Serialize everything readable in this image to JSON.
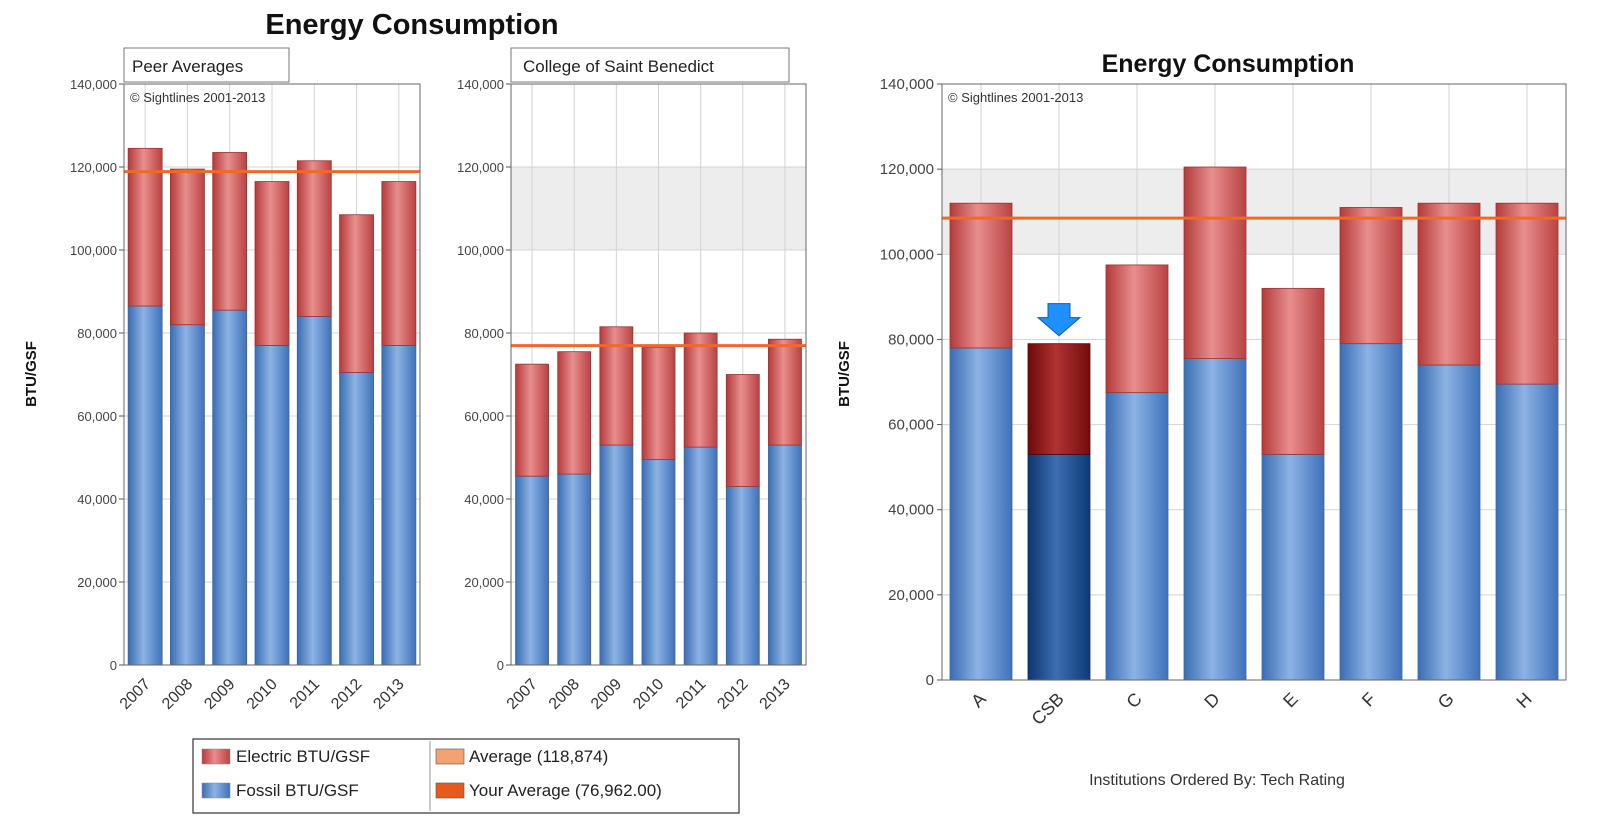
{
  "chart_data": [
    {
      "type": "bar",
      "stacked": true,
      "title": "Energy Consumption",
      "panel_label": "Peer Averages",
      "copyright": "© Sightlines 2001-2013",
      "ylabel": "BTU/GSF",
      "ylim": [
        0,
        140000
      ],
      "yticks": [
        "0",
        "20,000",
        "40,000",
        "60,000",
        "80,000",
        "100,000",
        "120,000",
        "140,000"
      ],
      "categories": [
        "2007",
        "2008",
        "2009",
        "2010",
        "2011",
        "2012",
        "2013"
      ],
      "series": [
        {
          "name": "Fossil BTU/GSF",
          "values": [
            86500,
            82000,
            85500,
            77000,
            84000,
            70500,
            77000
          ]
        },
        {
          "name": "Electric BTU/GSF",
          "values": [
            38000,
            37500,
            38000,
            39500,
            37500,
            38000,
            39500
          ]
        }
      ],
      "reference_line": 118874
    },
    {
      "type": "bar",
      "stacked": true,
      "panel_label": "College of Saint Benedict",
      "ylim": [
        0,
        140000
      ],
      "yticks": [
        "0",
        "20,000",
        "40,000",
        "60,000",
        "80,000",
        "100,000",
        "120,000",
        "140,000"
      ],
      "categories": [
        "2007",
        "2008",
        "2009",
        "2010",
        "2011",
        "2012",
        "2013"
      ],
      "series": [
        {
          "name": "Fossil BTU/GSF",
          "values": [
            45500,
            46000,
            53000,
            49500,
            52500,
            43000,
            53000
          ]
        },
        {
          "name": "Electric BTU/GSF",
          "values": [
            27000,
            29500,
            28500,
            27000,
            27500,
            27000,
            25500
          ]
        }
      ],
      "reference_line": 76962,
      "shaded_band": [
        100000,
        120000
      ]
    },
    {
      "type": "bar",
      "stacked": true,
      "title": "Energy Consumption",
      "copyright": "© Sightlines 2001-2013",
      "ylabel": "BTU/GSF",
      "xlabel": "Institutions Ordered By: Tech Rating",
      "ylim": [
        0,
        140000
      ],
      "yticks": [
        "0",
        "20,000",
        "40,000",
        "60,000",
        "80,000",
        "100,000",
        "120,000",
        "140,000"
      ],
      "categories": [
        "A",
        "CSB",
        "C",
        "D",
        "E",
        "F",
        "G",
        "H"
      ],
      "highlight": "CSB",
      "series": [
        {
          "name": "Fossil BTU/GSF",
          "values": [
            78000,
            53000,
            67500,
            75500,
            53000,
            79000,
            74000,
            69500
          ]
        },
        {
          "name": "Electric BTU/GSF",
          "values": [
            34000,
            26000,
            30000,
            45000,
            39000,
            32000,
            38000,
            42500
          ]
        }
      ],
      "reference_line": 108500,
      "shaded_band": [
        100000,
        120000
      ]
    }
  ],
  "legend": {
    "items": [
      {
        "label": "Electric BTU/GSF",
        "color": "#c84a4a"
      },
      {
        "label": "Fossil BTU/GSF",
        "color": "#4f81c7"
      },
      {
        "label": "Average (118,874)",
        "color": "#f4a272"
      },
      {
        "label": "Your Average (76,962.00)",
        "color": "#e65a1c"
      }
    ]
  },
  "colors": {
    "electric": "#c84a4a",
    "fossil": "#4f81c7",
    "highlight_electric": "#8a1010",
    "highlight_fossil": "#0d3f80",
    "line": "#ef6a2a",
    "band": "#ededed",
    "grid": "#d3d3d3",
    "arrow": "#1e90ff"
  }
}
